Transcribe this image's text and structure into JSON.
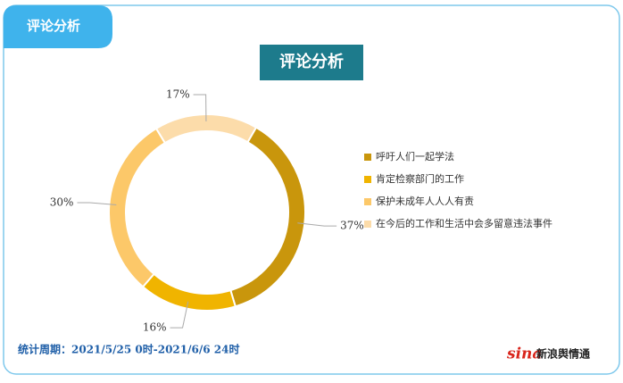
{
  "tab": "评论分析",
  "chart_data": {
    "type": "pie",
    "title": "评论分析",
    "categories": [
      "呼吁人们一起学法",
      "肯定检察部门的工作",
      "保护未成年人人人有责",
      "在今后的工作和生活中会多留意违法事件"
    ],
    "values": [
      37,
      16,
      30,
      17
    ],
    "value_labels": [
      "37%",
      "16%",
      "30%",
      "17%"
    ],
    "colors": [
      "#c9960c",
      "#f0b400",
      "#fcc869",
      "#fcdcaa"
    ],
    "donut": true,
    "legend": "right"
  },
  "footer": "统计周期：2021/5/25 0时-2021/6/6 24时",
  "logo": {
    "brand": "sina",
    "name": "新浪舆情通"
  }
}
